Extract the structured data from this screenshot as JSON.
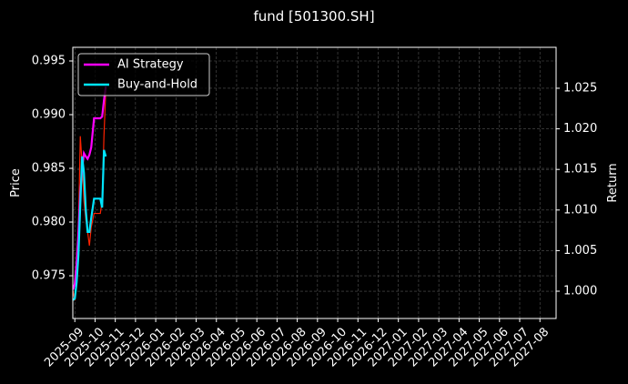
{
  "chart_data": {
    "type": "line",
    "title": "fund [501300.SH]",
    "y_label": "Price",
    "y2_label": "Return",
    "xlim": [
      -0.1,
      23.8
    ],
    "xticks": [
      {
        "value": 0,
        "label": "2025-09"
      },
      {
        "value": 1,
        "label": "2025-10"
      },
      {
        "value": 2,
        "label": "2025-11"
      },
      {
        "value": 3,
        "label": "2025-12"
      },
      {
        "value": 4,
        "label": "2026-01"
      },
      {
        "value": 5,
        "label": "2026-02"
      },
      {
        "value": 6,
        "label": "2026-03"
      },
      {
        "value": 7,
        "label": "2026-04"
      },
      {
        "value": 8,
        "label": "2026-05"
      },
      {
        "value": 9,
        "label": "2026-06"
      },
      {
        "value": 10,
        "label": "2026-07"
      },
      {
        "value": 11,
        "label": "2026-08"
      },
      {
        "value": 12,
        "label": "2026-09"
      },
      {
        "value": 13,
        "label": "2026-10"
      },
      {
        "value": 14,
        "label": "2026-11"
      },
      {
        "value": 15,
        "label": "2026-12"
      },
      {
        "value": 16,
        "label": "2027-01"
      },
      {
        "value": 17,
        "label": "2027-02"
      },
      {
        "value": 18,
        "label": "2027-03"
      },
      {
        "value": 19,
        "label": "2027-04"
      },
      {
        "value": 20,
        "label": "2027-05"
      },
      {
        "value": 21,
        "label": "2027-06"
      },
      {
        "value": 22,
        "label": "2027-07"
      },
      {
        "value": 23,
        "label": "2027-08"
      }
    ],
    "ylim": [
      0.97102,
      0.99627
    ],
    "yticks": [
      0.975,
      {
        "value": 0.98,
        "label": "0.980"
      },
      0.985,
      {
        "value": 0.99,
        "label": "0.990"
      },
      0.995
    ],
    "y2lim": [
      0.99664,
      1.03004
    ],
    "y2ticks": [
      {
        "value": 1.0,
        "label": "1.000"
      },
      1.005,
      {
        "value": 1.01,
        "label": "1.010"
      },
      1.015,
      {
        "value": 1.02,
        "label": "1.020"
      },
      1.025
    ],
    "grid": true,
    "legend": "upper left",
    "price_line": {
      "color": "#ff2200",
      "x": [
        -0.09,
        0,
        0.09,
        0.18,
        0.27,
        0.36,
        0.45,
        0.54,
        0.63,
        0.72,
        0.81,
        0.95,
        1.08,
        1.26,
        1.35,
        1.44,
        1.53
      ],
      "values": [
        0.9736,
        0.9727,
        0.9744,
        0.9795,
        0.988,
        0.9854,
        0.982,
        0.9803,
        0.9791,
        0.9778,
        0.9795,
        0.9808,
        0.9808,
        0.9808,
        0.982,
        0.988,
        0.9922
      ]
    },
    "series": [
      {
        "name": "AI Strategy",
        "color": "#ff00ff",
        "axis": "y2",
        "x": [
          -0.09,
          0,
          0.09,
          0.18,
          0.27,
          0.36,
          0.45,
          0.54,
          0.63,
          0.72,
          0.81,
          0.95,
          1.08,
          1.26,
          1.35,
          1.44,
          1.53
        ],
        "values": [
          1.0002,
          1.0009,
          1.0034,
          1.0073,
          1.0121,
          1.0151,
          1.017,
          1.0166,
          1.0163,
          1.0168,
          1.0177,
          1.0213,
          1.0213,
          1.0213,
          1.0215,
          1.0235,
          1.0252
        ]
      },
      {
        "name": "Buy-and-Hold",
        "color": "#00e5ff",
        "axis": "y2",
        "x": [
          -0.09,
          0,
          0.09,
          0.18,
          0.27,
          0.36,
          0.45,
          0.54,
          0.63,
          0.72,
          0.81,
          0.95,
          1.08,
          1.26,
          1.35,
          1.44,
          1.53
        ],
        "values": [
          0.9989,
          0.9991,
          1.0011,
          1.0045,
          1.0107,
          1.0166,
          1.0146,
          1.0101,
          1.0073,
          1.0073,
          1.009,
          1.0114,
          1.0114,
          1.0114,
          1.0103,
          1.0174,
          1.0166
        ]
      }
    ]
  }
}
